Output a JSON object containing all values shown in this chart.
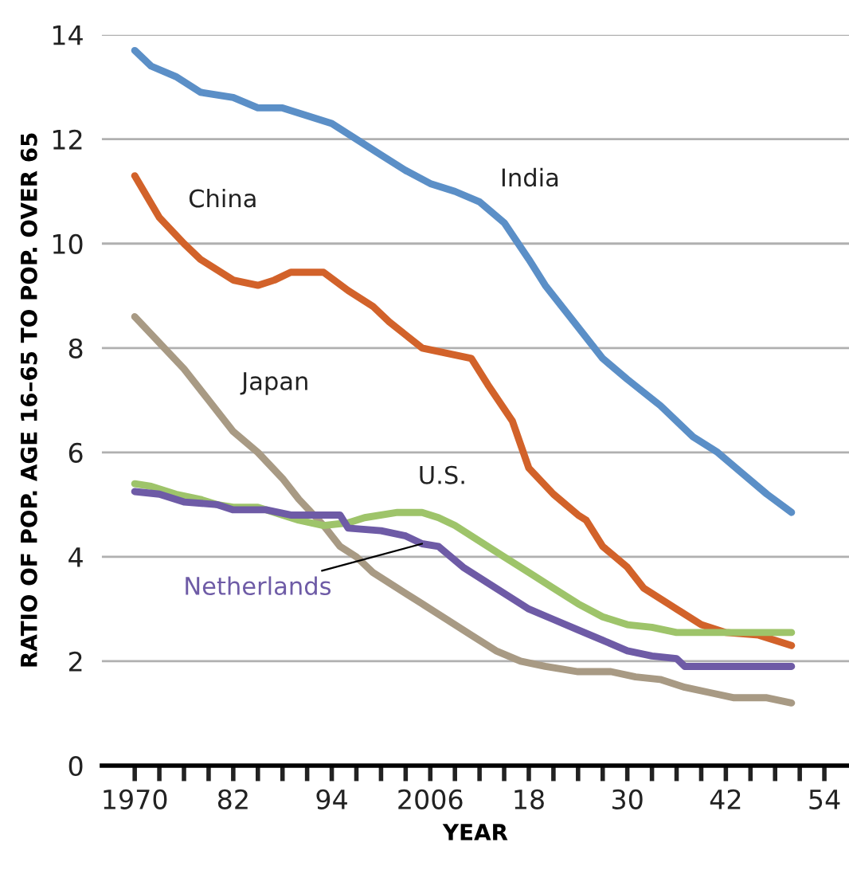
{
  "chart_data": {
    "type": "line",
    "xlabel": "YEAR",
    "ylabel": "RATIO OF POP. AGE 16–65 TO POP. OVER 65",
    "xlim": [
      1966,
      2057
    ],
    "ylim": [
      0,
      14
    ],
    "xticks": [
      {
        "value": 1970,
        "label": "1970"
      },
      {
        "value": 1973,
        "label": null
      },
      {
        "value": 1976,
        "label": null
      },
      {
        "value": 1979,
        "label": null
      },
      {
        "value": 1982,
        "label": "82"
      },
      {
        "value": 1985,
        "label": null
      },
      {
        "value": 1988,
        "label": null
      },
      {
        "value": 1991,
        "label": null
      },
      {
        "value": 1994,
        "label": "94"
      },
      {
        "value": 1997,
        "label": null
      },
      {
        "value": 2000,
        "label": null
      },
      {
        "value": 2003,
        "label": null
      },
      {
        "value": 2006,
        "label": "2006"
      },
      {
        "value": 2009,
        "label": null
      },
      {
        "value": 2012,
        "label": null
      },
      {
        "value": 2015,
        "label": null
      },
      {
        "value": 2018,
        "label": "18"
      },
      {
        "value": 2021,
        "label": null
      },
      {
        "value": 2024,
        "label": null
      },
      {
        "value": 2027,
        "label": null
      },
      {
        "value": 2030,
        "label": "30"
      },
      {
        "value": 2033,
        "label": null
      },
      {
        "value": 2036,
        "label": null
      },
      {
        "value": 2039,
        "label": null
      },
      {
        "value": 2042,
        "label": "42"
      },
      {
        "value": 2045,
        "label": null
      },
      {
        "value": 2048,
        "label": null
      },
      {
        "value": 2051,
        "label": null
      },
      {
        "value": 2054,
        "label": "54"
      }
    ],
    "yticks": [
      0,
      2,
      4,
      6,
      8,
      10,
      12,
      14
    ],
    "grid": "y",
    "legend": false,
    "line_style": "solid",
    "marker": "none",
    "series": [
      {
        "name": "India",
        "color": "#5b8fc7",
        "x": [
          1970,
          1972,
          1975,
          1978,
          1982,
          1985,
          1988,
          1990,
          1994,
          1997,
          2000,
          2003,
          2006,
          2009,
          2012,
          2015,
          2018,
          2020,
          2023,
          2027,
          2030,
          2034,
          2038,
          2041,
          2044,
          2047,
          2050
        ],
        "values": [
          13.7,
          13.4,
          13.2,
          12.9,
          12.8,
          12.6,
          12.6,
          12.5,
          12.3,
          12.0,
          11.7,
          11.4,
          11.15,
          11.0,
          10.8,
          10.4,
          9.7,
          9.2,
          8.6,
          7.8,
          7.4,
          6.9,
          6.3,
          6.0,
          5.6,
          5.2,
          4.85
        ]
      },
      {
        "name": "China",
        "color": "#d2622a",
        "x": [
          1970,
          1973,
          1976,
          1978,
          1982,
          1985,
          1987,
          1989,
          1993,
          1996,
          1999,
          2001,
          2005,
          2008,
          2011,
          2013,
          2016,
          2018,
          2021,
          2024,
          2025,
          2027,
          2030,
          2032,
          2036,
          2039,
          2042,
          2046,
          2048,
          2050
        ],
        "values": [
          11.3,
          10.5,
          10.0,
          9.7,
          9.3,
          9.2,
          9.3,
          9.45,
          9.45,
          9.1,
          8.8,
          8.5,
          8.0,
          7.9,
          7.8,
          7.3,
          6.6,
          5.7,
          5.2,
          4.8,
          4.7,
          4.2,
          3.8,
          3.4,
          3.0,
          2.7,
          2.55,
          2.5,
          2.4,
          2.3
        ]
      },
      {
        "name": "Japan",
        "color": "#a89a84",
        "x": [
          1970,
          1973,
          1976,
          1979,
          1982,
          1985,
          1988,
          1990,
          1993,
          1995,
          1997,
          1999,
          2002,
          2005,
          2008,
          2011,
          2014,
          2017,
          2020,
          2024,
          2028,
          2031,
          2034,
          2037,
          2040,
          2043,
          2047,
          2050
        ],
        "values": [
          8.6,
          8.1,
          7.6,
          7.0,
          6.4,
          6.0,
          5.5,
          5.1,
          4.6,
          4.2,
          4.0,
          3.7,
          3.4,
          3.1,
          2.8,
          2.5,
          2.2,
          2.0,
          1.9,
          1.8,
          1.8,
          1.7,
          1.65,
          1.5,
          1.4,
          1.3,
          1.3,
          1.2
        ]
      },
      {
        "name": "U.S.",
        "color": "#9ec46a",
        "x": [
          1970,
          1972,
          1975,
          1978,
          1980,
          1982,
          1985,
          1988,
          1990,
          1993,
          1996,
          1998,
          2002,
          2005,
          2007,
          2009,
          2012,
          2015,
          2018,
          2021,
          2024,
          2027,
          2030,
          2033,
          2036,
          2050
        ],
        "values": [
          5.4,
          5.35,
          5.2,
          5.1,
          5.0,
          4.95,
          4.95,
          4.8,
          4.7,
          4.6,
          4.65,
          4.75,
          4.85,
          4.85,
          4.75,
          4.6,
          4.3,
          4.0,
          3.7,
          3.4,
          3.1,
          2.85,
          2.7,
          2.65,
          2.55,
          2.55
        ]
      },
      {
        "name": "Netherlands",
        "color": "#6e5ba6",
        "x": [
          1970,
          1973,
          1976,
          1980,
          1982,
          1986,
          1989,
          1995,
          1996,
          2000,
          2003,
          2005,
          2007,
          2010,
          2014,
          2018,
          2021,
          2024,
          2027,
          2030,
          2033,
          2036,
          2037,
          2050
        ],
        "values": [
          5.25,
          5.2,
          5.05,
          5.0,
          4.9,
          4.9,
          4.8,
          4.8,
          4.55,
          4.5,
          4.4,
          4.25,
          4.2,
          3.8,
          3.4,
          3.0,
          2.8,
          2.6,
          2.4,
          2.2,
          2.1,
          2.05,
          1.9,
          1.9
        ]
      }
    ]
  }
}
